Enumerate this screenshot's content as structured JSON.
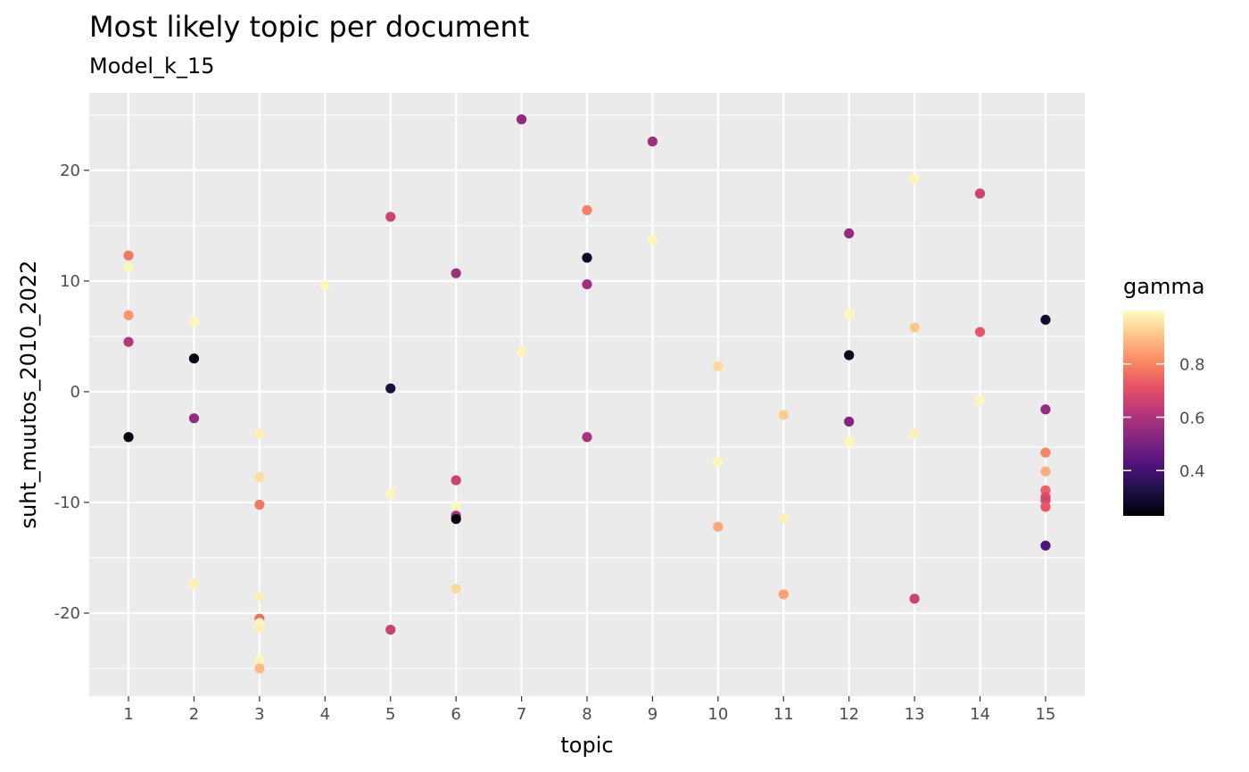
{
  "chart_data": {
    "type": "scatter",
    "title": "Most likely topic per document",
    "subtitle": "Model_k_15",
    "xlabel": "topic",
    "ylabel": "suht_muutos_2010_2022",
    "xlim": [
      0.4,
      15.6
    ],
    "ylim": [
      -27.5,
      27
    ],
    "x_ticks": [
      1,
      2,
      3,
      4,
      5,
      6,
      7,
      8,
      9,
      10,
      11,
      12,
      13,
      14,
      15
    ],
    "y_ticks": [
      -20,
      -10,
      0,
      10,
      20
    ],
    "grid": true,
    "legend": {
      "title": "gamma",
      "placement": "right",
      "range": [
        0.23,
        1.0
      ],
      "ticks": [
        0.4,
        0.6,
        0.8
      ],
      "palette": [
        "#000004",
        "#1D1147",
        "#51127C",
        "#822681",
        "#B63679",
        "#E65164",
        "#FB8861",
        "#FEC287",
        "#FCFDBF"
      ]
    },
    "points": [
      {
        "x": 1,
        "y": 12.3,
        "gamma": 0.78
      },
      {
        "x": 1,
        "y": 11.2,
        "gamma": 0.99
      },
      {
        "x": 1,
        "y": 6.9,
        "gamma": 0.83
      },
      {
        "x": 1,
        "y": 4.5,
        "gamma": 0.62
      },
      {
        "x": 1,
        "y": -4.1,
        "gamma": 0.24
      },
      {
        "x": 2,
        "y": 6.3,
        "gamma": 0.99
      },
      {
        "x": 2,
        "y": 3.0,
        "gamma": 0.25
      },
      {
        "x": 2,
        "y": -2.4,
        "gamma": 0.55
      },
      {
        "x": 2,
        "y": -17.3,
        "gamma": 0.98
      },
      {
        "x": 3,
        "y": -3.8,
        "gamma": 0.98
      },
      {
        "x": 3,
        "y": -7.7,
        "gamma": 0.95
      },
      {
        "x": 3,
        "y": -10.2,
        "gamma": 0.78
      },
      {
        "x": 3,
        "y": -18.5,
        "gamma": 0.98
      },
      {
        "x": 3,
        "y": -20.5,
        "gamma": 0.76
      },
      {
        "x": 3,
        "y": -20.9,
        "gamma": 0.99
      },
      {
        "x": 3,
        "y": -21.3,
        "gamma": 0.98
      },
      {
        "x": 3,
        "y": -24.2,
        "gamma": 0.99
      },
      {
        "x": 3,
        "y": -25.0,
        "gamma": 0.89
      },
      {
        "x": 4,
        "y": 9.6,
        "gamma": 0.99
      },
      {
        "x": 5,
        "y": 15.8,
        "gamma": 0.66
      },
      {
        "x": 5,
        "y": 0.3,
        "gamma": 0.32
      },
      {
        "x": 5,
        "y": -9.2,
        "gamma": 0.99
      },
      {
        "x": 5,
        "y": -21.5,
        "gamma": 0.66
      },
      {
        "x": 6,
        "y": 10.7,
        "gamma": 0.57
      },
      {
        "x": 6,
        "y": -8.0,
        "gamma": 0.66
      },
      {
        "x": 6,
        "y": -10.4,
        "gamma": 0.99
      },
      {
        "x": 6,
        "y": -11.2,
        "gamma": 0.58
      },
      {
        "x": 6,
        "y": -11.5,
        "gamma": 0.24
      },
      {
        "x": 6,
        "y": -17.8,
        "gamma": 0.94
      },
      {
        "x": 7,
        "y": 24.6,
        "gamma": 0.55
      },
      {
        "x": 7,
        "y": 3.6,
        "gamma": 0.99
      },
      {
        "x": 8,
        "y": 16.4,
        "gamma": 0.79
      },
      {
        "x": 8,
        "y": 12.1,
        "gamma": 0.28
      },
      {
        "x": 8,
        "y": 9.7,
        "gamma": 0.58
      },
      {
        "x": 8,
        "y": -4.1,
        "gamma": 0.59
      },
      {
        "x": 9,
        "y": 22.6,
        "gamma": 0.57
      },
      {
        "x": 9,
        "y": 13.7,
        "gamma": 0.99
      },
      {
        "x": 10,
        "y": 2.3,
        "gamma": 0.94
      },
      {
        "x": 10,
        "y": -6.3,
        "gamma": 0.99
      },
      {
        "x": 10,
        "y": -12.2,
        "gamma": 0.86
      },
      {
        "x": 11,
        "y": -2.1,
        "gamma": 0.92
      },
      {
        "x": 11,
        "y": -11.4,
        "gamma": 0.98
      },
      {
        "x": 11,
        "y": -18.3,
        "gamma": 0.85
      },
      {
        "x": 12,
        "y": 14.3,
        "gamma": 0.55
      },
      {
        "x": 12,
        "y": 7.0,
        "gamma": 0.99
      },
      {
        "x": 12,
        "y": 3.3,
        "gamma": 0.26
      },
      {
        "x": 12,
        "y": -2.7,
        "gamma": 0.52
      },
      {
        "x": 12,
        "y": -4.5,
        "gamma": 0.99
      },
      {
        "x": 13,
        "y": 19.2,
        "gamma": 0.99
      },
      {
        "x": 13,
        "y": 5.8,
        "gamma": 0.91
      },
      {
        "x": 13,
        "y": -3.8,
        "gamma": 0.98
      },
      {
        "x": 13,
        "y": -18.7,
        "gamma": 0.66
      },
      {
        "x": 14,
        "y": 17.9,
        "gamma": 0.66
      },
      {
        "x": 14,
        "y": 5.4,
        "gamma": 0.72
      },
      {
        "x": 14,
        "y": -0.8,
        "gamma": 0.99
      },
      {
        "x": 15,
        "y": 6.5,
        "gamma": 0.29
      },
      {
        "x": 15,
        "y": -1.6,
        "gamma": 0.55
      },
      {
        "x": 15,
        "y": -5.5,
        "gamma": 0.8
      },
      {
        "x": 15,
        "y": -7.2,
        "gamma": 0.87
      },
      {
        "x": 15,
        "y": -8.9,
        "gamma": 0.74
      },
      {
        "x": 15,
        "y": -9.5,
        "gamma": 0.7
      },
      {
        "x": 15,
        "y": -9.8,
        "gamma": 0.68
      },
      {
        "x": 15,
        "y": -10.4,
        "gamma": 0.72
      },
      {
        "x": 15,
        "y": -13.9,
        "gamma": 0.42
      }
    ]
  }
}
